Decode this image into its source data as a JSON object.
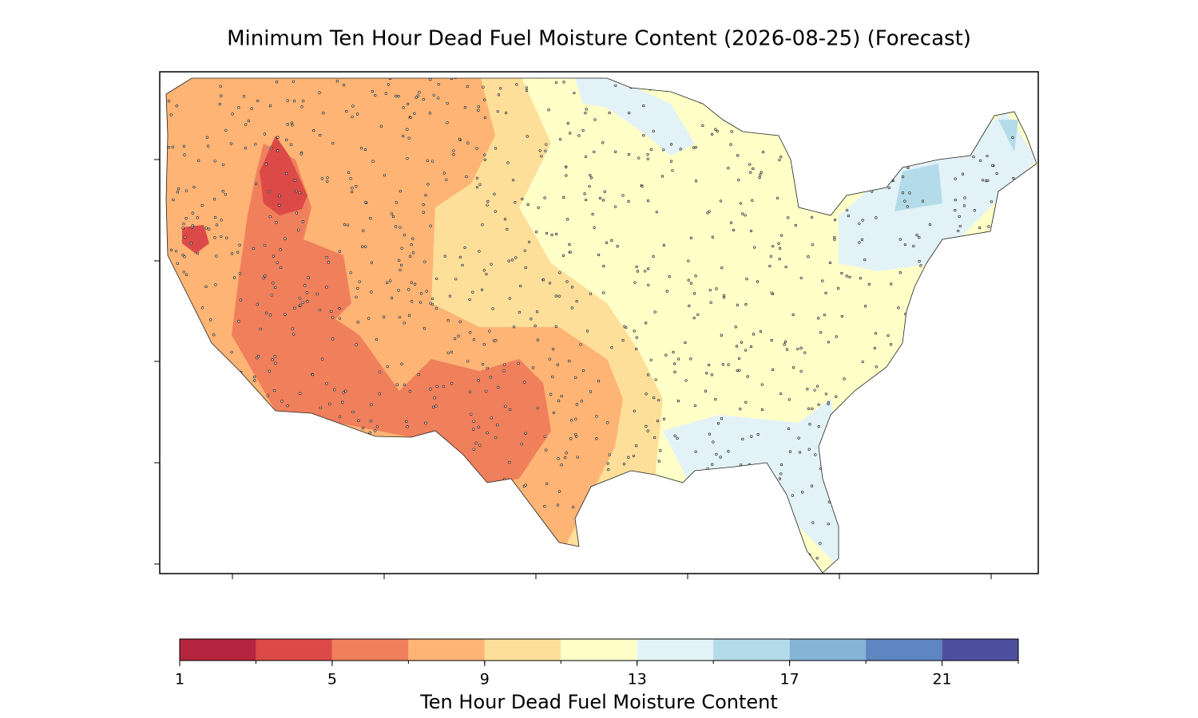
{
  "title": "Minimum Ten Hour Dead Fuel Moisture Content (2026-08-25) (Forecast)",
  "colorbar": {
    "label": "Ten Hour Dead Fuel Moisture Content",
    "bounds": [
      1,
      3,
      5,
      7,
      9,
      11,
      13,
      15,
      17,
      19,
      21,
      23
    ],
    "colors": [
      "#b5243f",
      "#db4a47",
      "#f07f5c",
      "#fdb474",
      "#fedf99",
      "#ffffc8",
      "#e3f2f7",
      "#b4dbea",
      "#84b4d6",
      "#5e86c0",
      "#4f4fa1"
    ],
    "ticks": [
      1,
      5,
      9,
      13,
      17,
      21
    ]
  }
}
